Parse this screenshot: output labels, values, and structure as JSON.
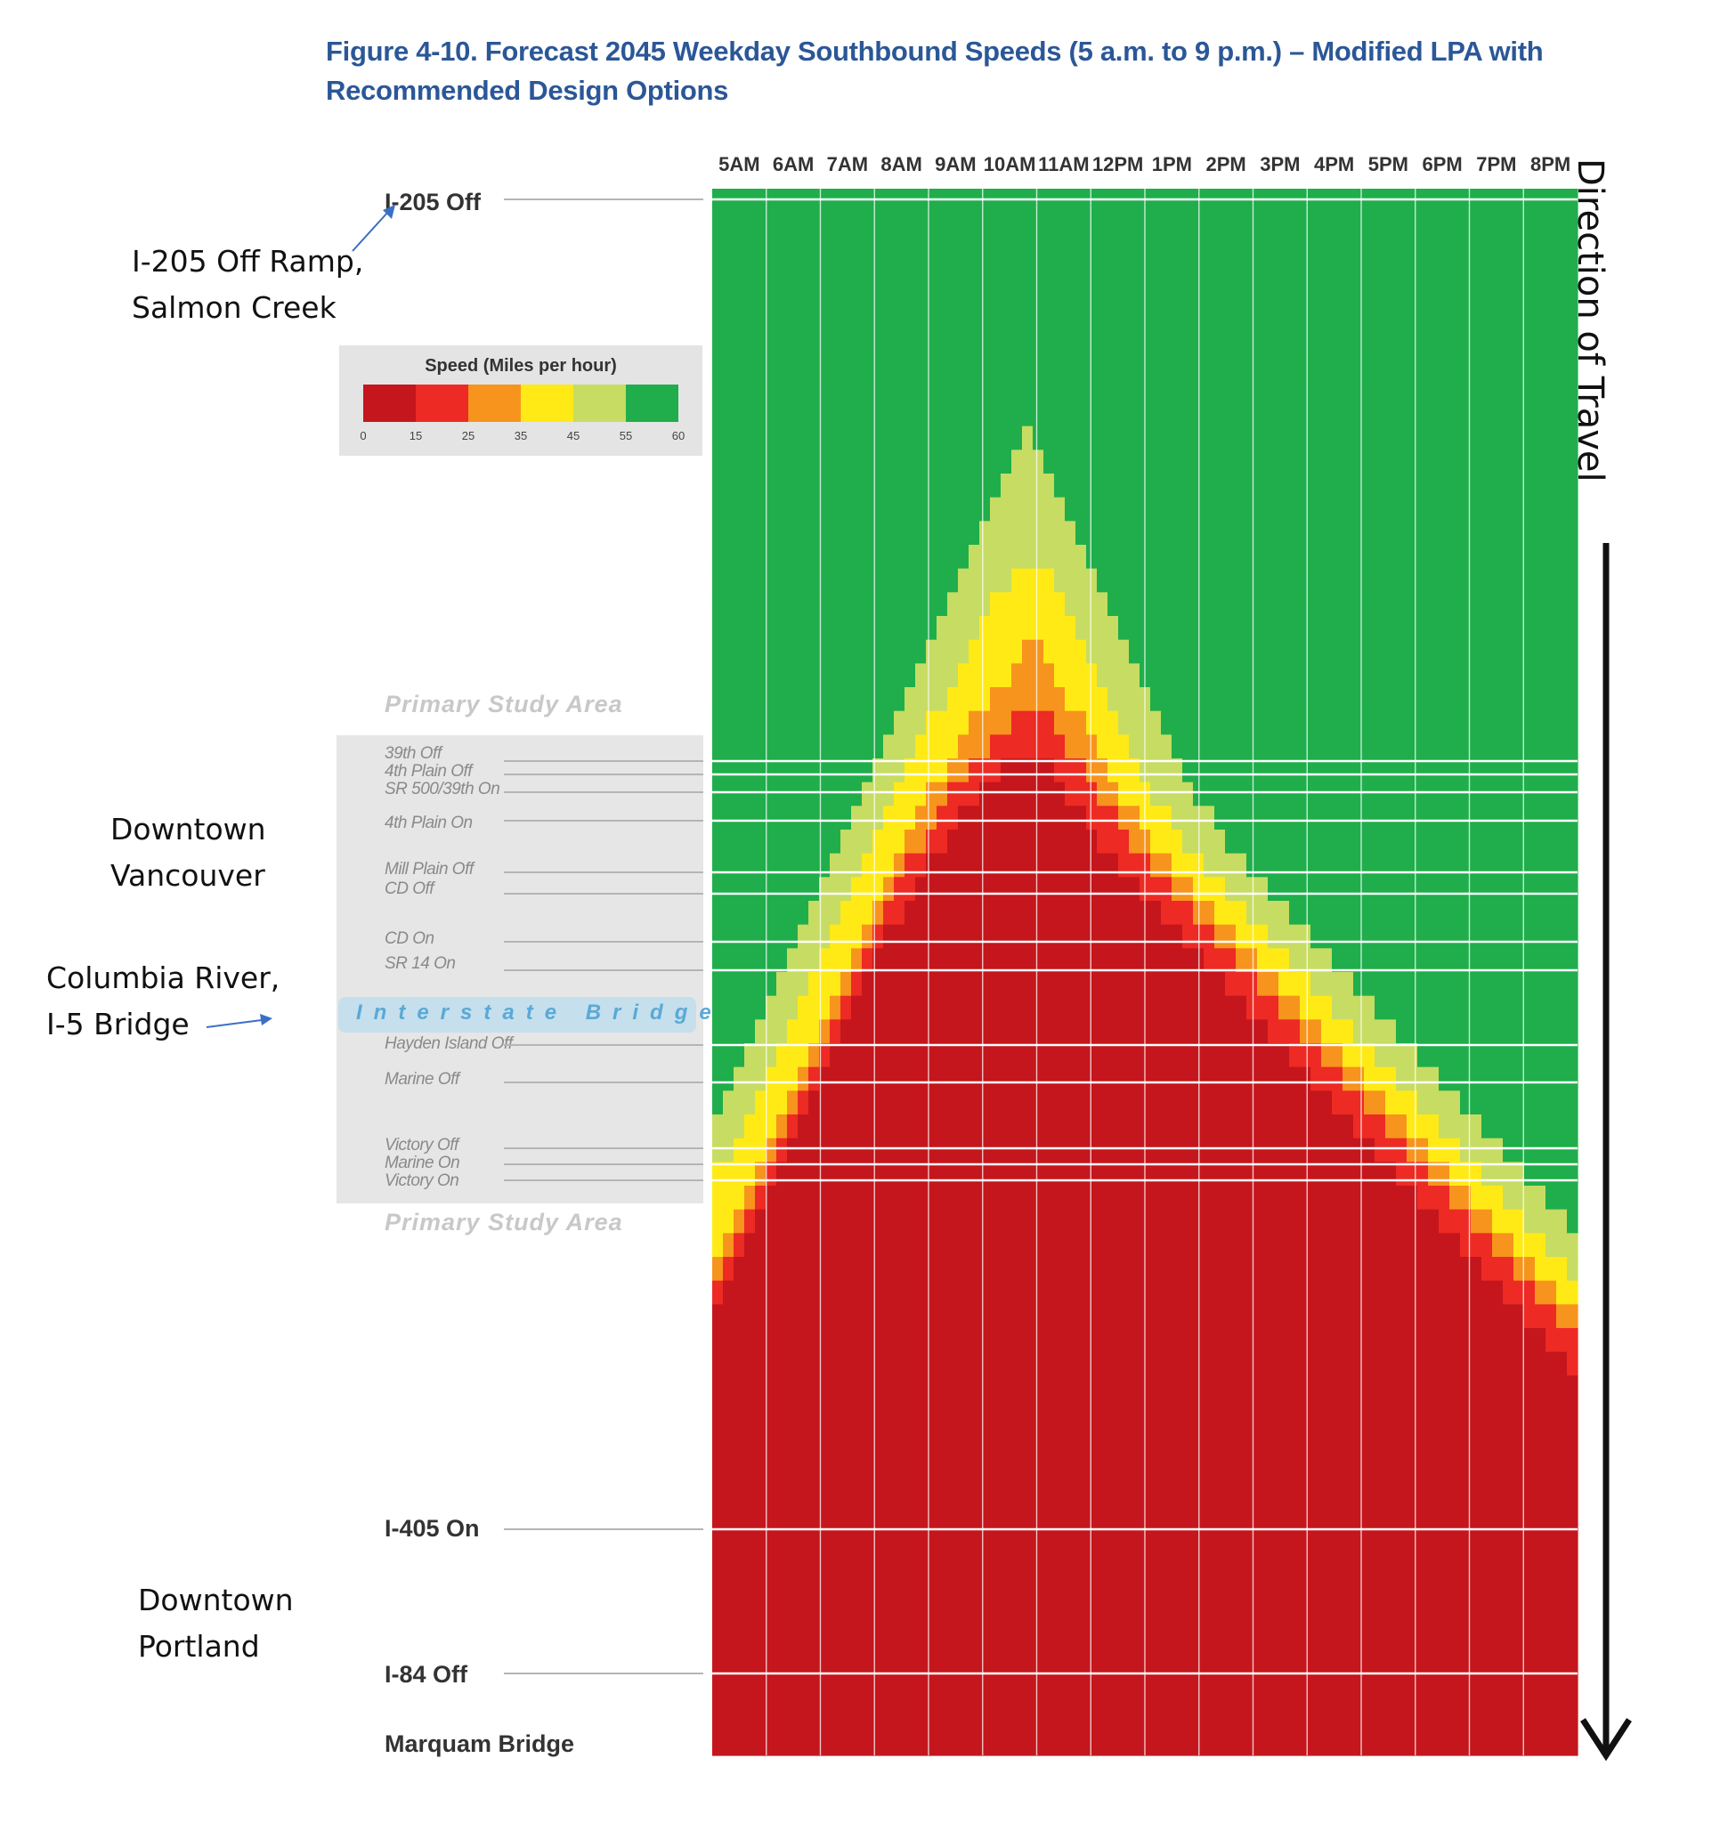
{
  "title_line1": "Figure 4-10. Forecast 2045 Weekday Southbound Speeds (5 a.m. to 9 p.m.) – Modified LPA with",
  "title_line2": "Recommended Design Options",
  "annotations": {
    "i205": [
      "I-205 Off Ramp,",
      "Salmon Creek"
    ],
    "vancouver": [
      "Downtown",
      "Vancouver"
    ],
    "columbia": [
      "Columbia River,",
      "I-5 Bridge"
    ],
    "portland": [
      "Downtown",
      "Portland"
    ]
  },
  "legend": {
    "title": "Speed (Miles per hour)",
    "ticks": [
      "0",
      "15",
      "25",
      "35",
      "45",
      "55",
      "60"
    ],
    "colors": [
      "#c4161c",
      "#ed2a24",
      "#f7941d",
      "#ffea16",
      "#c7dc63",
      "#1fae4b"
    ]
  },
  "locations": {
    "i205_off": "I-205 Off",
    "i405_on": "I-405 On",
    "i84_off": "I-84 Off",
    "marquam": "Marquam Bridge"
  },
  "study_area": {
    "label": "Primary Study Area",
    "ramps": [
      "39th Off",
      "4th Plain Off",
      "SR 500/39th On",
      "4th Plain On",
      "Mill Plain Off",
      "CD Off",
      "CD On",
      "SR 14 On",
      "Hayden Island Off",
      "Marine Off",
      "Victory Off",
      "Marine On",
      "Victory On"
    ],
    "bridge": "Interstate Bridge"
  },
  "direction": "Direction of Travel",
  "chart_data": {
    "type": "heatmap",
    "title": "Forecast 2045 Weekday Southbound Speeds (5 a.m. to 9 p.m.) – Modified LPA with Recommended Design Options",
    "x_tick_labels": [
      "5AM",
      "6AM",
      "7AM",
      "8AM",
      "9AM",
      "10AM",
      "11AM",
      "12PM",
      "1PM",
      "2PM",
      "3PM",
      "4PM",
      "5PM",
      "6PM",
      "7PM",
      "8PM"
    ],
    "color_scale_mph": [
      0,
      15,
      25,
      35,
      45,
      55,
      60
    ],
    "y_labels": [
      "I-205 Off",
      "39th Off",
      "4th Plain Off",
      "SR 500/39th On",
      "4th Plain On",
      "Mill Plain Off",
      "CD Off",
      "CD On",
      "SR 14 On",
      "Hayden Island Off",
      "Marine Off",
      "Victory Off",
      "Marine On",
      "Victory On",
      "I-405 On",
      "I-84 Off",
      "Marquam Bridge"
    ],
    "speed_class_legend": {
      "1": "0-15",
      "2": "15-25",
      "3": "25-35",
      "4": "35-45",
      "5": "45-55",
      "6": "55-60"
    },
    "rows": [
      "666666666666666666666666666666666666666666666666666666666666666666666666666666666",
      "666666666666666666666666666666666666666666666666666666666666666666666666666666666",
      "666666666666666666666666666666666666666666666666666666666666666666666666666666666",
      "666666666666666666666666666666666666666666666666666666666666666666666666666666666",
      "666666666666666666666666666666666666666666666666666666666666666666666666666666666",
      "666666666666666666666666666666666666666666666666666666666666666666666666666666666",
      "666666666666666666666666666666666666666666666666666666666666666666666666666666666",
      "666666666666666666666666666666666666666666666666666666666666666666666666666666666",
      "666666666666666666666666666666666666666666666666666666666666666666666666666666666",
      "666666666666666666666666666666666666666666666666666666666666666666666666666666666",
      "666666666666666666666666666665666666666666666666666666666666666666666666666666666",
      "666666666666666666666666666655566666666666666666666666666666666666666666666666666",
      "666666666666666666666666666555556666666666666666666666666666666666666666666666666",
      "666666666666666666666666665555555666666666666666666666666666666666666666666666666",
      "666666666666666666666666655555555566666666666666666666666666666666666666666666666",
      "666666666666666666666666555555555556666666666666666666666666666666666666666666666",
      "666666666666666666666665555544445555666666666666666666666666666666666666666666666",
      "666666666666666666666655554444444555566666666666666666666666666666666666666666666",
      "666666666666666666666555544444444455556666666666666666666666666666666666666666666",
      "666666666666666666665555444443344445555666666666666666666666666666666666666666666",
      "666666666666666666655554444433334444555566666666666666666666666666666666666666666",
      "666666666666666666555544443333333444455556666666666666666666666666666666666666666",
      "666666666666666665554444333322223334445555666666666666666666666666666666666666666",
      "666666666666666655544443332222222333444555566666666666666666666666666666666666666",
      "666666666666666555444433222111112223344455556666666666666666666666666666666666666",
      "666666666666665554443322211111111222334445555666666666666666666666666666666666666",
      "666666666666655544433221111111111112223344455556666666666666666666666666666666666",
      "666666666666555444332211111111111111222334445555666666666666666666666666666666666",
      "666666666665554443221111111111111111112223344455556666666666666666666666666666666",
      "666666666655544432211111111111111111111122233444555566666666666666666666666666666",
      "666666666555444322111111111111111111111111222334445555666666666666666666666666666",
      "666666665554443211111111111111111111111111112223344455556666666666666666666666666",
      "666666655544432111111111111111111111111111111122233444555566666666666666666666666",
      "666666555444321111111111111111111111111111111111222334445555666666666666666666666",
      "666665554443211111111111111111111111111111111111112223344455556666666666666666666",
      "666655544432111111111111111111111111111111111111111122233444555566666666666666666",
      "666555444321111111111111111111111111111111111111111111222334445555666666666666666",
      "665554443211111111111111111111111111111111111111111111112223344455556666666666666",
      "655544432111111111111111111111111111111111111111111111111122233444555566666666666",
      "555444321111111111111111111111111111111111111111111111111111222334445555666666666",
      "554443211111111111111111111111111111111111111111111111111111112223344455556666666",
      "444432111111111111111111111111111111111111111111111111111111111122233444555566666",
      "444321111111111111111111111111111111111111111111111111111111111111222334445555666",
      "443211111111111111111111111111111111111111111111111111111111111111112223344455556",
      "432111111111111111111111111111111111111111111111111111111111111111111122233444555",
      "321111111111111111111111111111111111111111111111111111111111111111111111222334445",
      "211111111111111111111111111111111111111111111111111111111111111111111111112223344",
      "111111111111111111111111111111111111111111111111111111111111111111111111111122233",
      "111111111111111111111111111111111111111111111111111111111111111111111111111111222",
      "111111111111111111111111111111111111111111111111111111111111111111111111111111112",
      "111111111111111111111111111111111111111111111111111111111111111111111111111111111",
      "111111111111111111111111111111111111111111111111111111111111111111111111111111111",
      "111111111111111111111111111111111111111111111111111111111111111111111111111111111",
      "111111111111111111111111111111111111111111111111111111111111111111111111111111111",
      "111111111111111111111111111111111111111111111111111111111111111111111111111111111",
      "111111111111111111111111111111111111111111111111111111111111111111111111111111111",
      "111111111111111111111111111111111111111111111111111111111111111111111111111111111",
      "111111111111111111111111111111111111111111111111111111111111111111111111111111111",
      "111111111111111111111111111111111111111111111111111111111111111111111111111111111",
      "111111111111111111111111111111111111111111111111111111111111111111111111111111111",
      "111111111111111111111111111111111111111111111111111111111111111111111111111111111",
      "111111111111111111111111111111111111111111111111111111111111111111111111111111111",
      "111111111111111111111111111111111111111111111111111111111111111111111111111111111",
      "111111111111111111111111111111111111111111111111111111111111111111111111111111111",
      "111111111111111111111111111111111111111111111111111111111111111111111111111111111",
      "111111111111111111111111111111111111111111111111111111111111111111111111111111111"
    ]
  }
}
